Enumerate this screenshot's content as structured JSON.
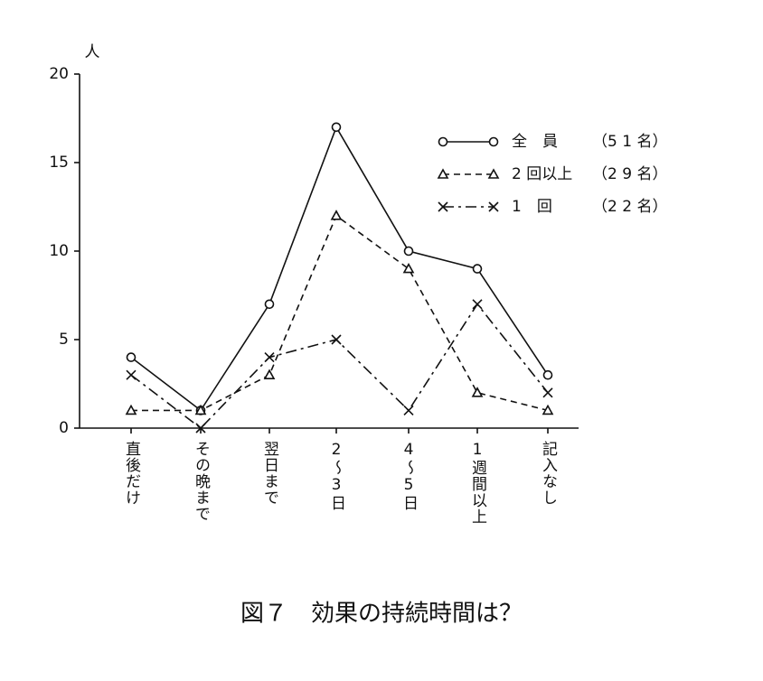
{
  "chart_data": {
    "type": "line",
    "title": "図７　効果の持続時間は？",
    "y_label": "人",
    "categories": [
      "直後だけ",
      "その晩まで",
      "翌日まで",
      "2〜3日",
      "4〜5日",
      "1週間以上",
      "記入なし"
    ],
    "series": [
      {
        "name": "全　員",
        "note": "（5 1 名）",
        "color": "#111111",
        "style": "solid",
        "marker": "circle",
        "values": [
          4,
          1,
          7,
          17,
          10,
          9,
          3
        ]
      },
      {
        "name": "2 回以上",
        "note": "（2 9 名）",
        "color": "#111111",
        "style": "dashed",
        "marker": "triangle",
        "values": [
          1,
          1,
          3,
          12,
          9,
          2,
          1
        ]
      },
      {
        "name": "1　回",
        "note": "（2 2 名）",
        "color": "#111111",
        "style": "dashdot",
        "marker": "x",
        "values": [
          3,
          0,
          4,
          5,
          1,
          7,
          2
        ]
      }
    ],
    "ylim": [
      0,
      20
    ],
    "yticks": [
      0,
      5,
      10,
      15,
      20
    ],
    "grid": false,
    "legend": "upper right"
  }
}
